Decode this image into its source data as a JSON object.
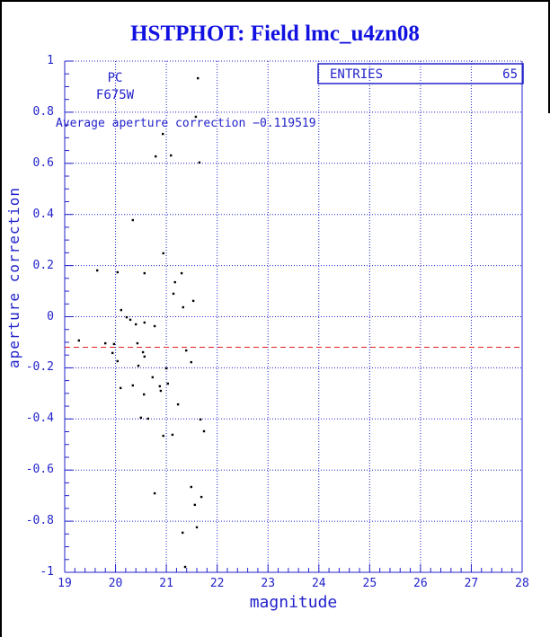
{
  "title": "HSTPHOT: Field lmc_u4zn08",
  "stats_box": {
    "label": "ENTRIES",
    "value": "65"
  },
  "annotations": {
    "detector": "PC",
    "filter": "F675W",
    "average_text": "Average aperture correction −0.119519"
  },
  "colors": {
    "title_blue": "#1212e0",
    "plot_blue": "#2222cc",
    "grid_blue": "#2222cc",
    "avg_line_red": "#e02020",
    "point_black": "#000000"
  },
  "chart_data": {
    "type": "scatter",
    "title": "HSTPHOT: Field lmc_u4zn08",
    "xlabel": "magnitude",
    "ylabel": "aperture correction",
    "xlim": [
      19,
      28
    ],
    "ylim": [
      -1,
      1
    ],
    "x_major_ticks": [
      19,
      20,
      21,
      22,
      23,
      24,
      25,
      26,
      27,
      28
    ],
    "x_tick_labels": [
      "19",
      "20",
      "21",
      "22",
      "23",
      "24",
      "25",
      "26",
      "27",
      "28"
    ],
    "x_minor_step": 0.2,
    "y_major_ticks": [
      -1,
      -0.8,
      -0.6,
      -0.4,
      -0.2,
      0,
      0.2,
      0.4,
      0.6,
      0.8,
      1
    ],
    "y_tick_labels": [
      "-1",
      "-0.8",
      "-0.6",
      "-0.4",
      "-0.2",
      "0",
      "0.2",
      "0.4",
      "0.6",
      "0.8",
      "1"
    ],
    "y_minor_step": 0.05,
    "grid": true,
    "legend_position": "none",
    "entries": 65,
    "average_line_y": -0.119519,
    "points": [
      [
        21.62,
        0.933
      ],
      [
        21.58,
        0.782
      ],
      [
        20.93,
        0.715
      ],
      [
        20.79,
        0.627
      ],
      [
        21.09,
        0.631
      ],
      [
        21.65,
        0.603
      ],
      [
        20.34,
        0.378
      ],
      [
        20.94,
        0.248
      ],
      [
        19.64,
        0.181
      ],
      [
        20.04,
        0.174
      ],
      [
        20.57,
        0.17
      ],
      [
        21.3,
        0.17
      ],
      [
        21.17,
        0.135
      ],
      [
        21.14,
        0.09
      ],
      [
        20.11,
        0.026
      ],
      [
        20.22,
        -0.002
      ],
      [
        20.29,
        -0.012
      ],
      [
        21.53,
        0.062
      ],
      [
        21.33,
        0.037
      ],
      [
        20.4,
        -0.03
      ],
      [
        20.57,
        -0.023
      ],
      [
        20.77,
        -0.037
      ],
      [
        19.28,
        -0.093
      ],
      [
        19.8,
        -0.104
      ],
      [
        19.97,
        -0.107
      ],
      [
        20.43,
        -0.104
      ],
      [
        19.94,
        -0.142
      ],
      [
        20.54,
        -0.139
      ],
      [
        21.39,
        -0.132
      ],
      [
        20.04,
        -0.174
      ],
      [
        20.57,
        -0.156
      ],
      [
        21.49,
        -0.178
      ],
      [
        20.45,
        -0.192
      ],
      [
        21.0,
        -0.202
      ],
      [
        20.73,
        -0.237
      ],
      [
        21.03,
        -0.262
      ],
      [
        20.34,
        -0.269
      ],
      [
        20.87,
        -0.272
      ],
      [
        20.1,
        -0.279
      ],
      [
        20.89,
        -0.29
      ],
      [
        20.56,
        -0.304
      ],
      [
        21.23,
        -0.343
      ],
      [
        20.5,
        -0.395
      ],
      [
        20.64,
        -0.399
      ],
      [
        21.67,
        -0.402
      ],
      [
        20.94,
        -0.466
      ],
      [
        21.12,
        -0.462
      ],
      [
        21.74,
        -0.448
      ],
      [
        21.49,
        -0.666
      ],
      [
        20.77,
        -0.691
      ],
      [
        21.69,
        -0.705
      ],
      [
        21.56,
        -0.736
      ],
      [
        21.6,
        -0.824
      ],
      [
        21.32,
        -0.845
      ],
      [
        21.37,
        -0.979
      ]
    ]
  }
}
